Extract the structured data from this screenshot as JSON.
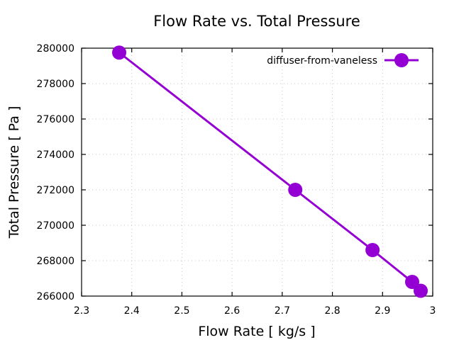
{
  "chart_data": {
    "type": "line",
    "title": "Flow Rate vs. Total Pressure",
    "xlabel": "Flow Rate [ kg/s ]",
    "ylabel": "Total Pressure [ Pa ]",
    "xlim": [
      2.3,
      3.0
    ],
    "ylim": [
      266000,
      280000
    ],
    "xticks": [
      2.3,
      2.4,
      2.5,
      2.6,
      2.7,
      2.8,
      2.9,
      3.0
    ],
    "xtick_labels": [
      "2.3",
      "2.4",
      "2.5",
      "2.6",
      "2.7",
      "2.8",
      "2.9",
      "3"
    ],
    "yticks": [
      266000,
      268000,
      270000,
      272000,
      274000,
      276000,
      278000,
      280000
    ],
    "ytick_labels": [
      "266000",
      "268000",
      "270000",
      "272000",
      "274000",
      "276000",
      "278000",
      "280000"
    ],
    "grid": true,
    "legend_position": "top-right",
    "series": [
      {
        "name": "diffuser-from-vaneless",
        "color": "#9400d3",
        "marker": "circle",
        "x": [
          2.375,
          2.726,
          2.88,
          2.959,
          2.976
        ],
        "y": [
          279750,
          272000,
          268600,
          266800,
          266300
        ]
      }
    ]
  }
}
